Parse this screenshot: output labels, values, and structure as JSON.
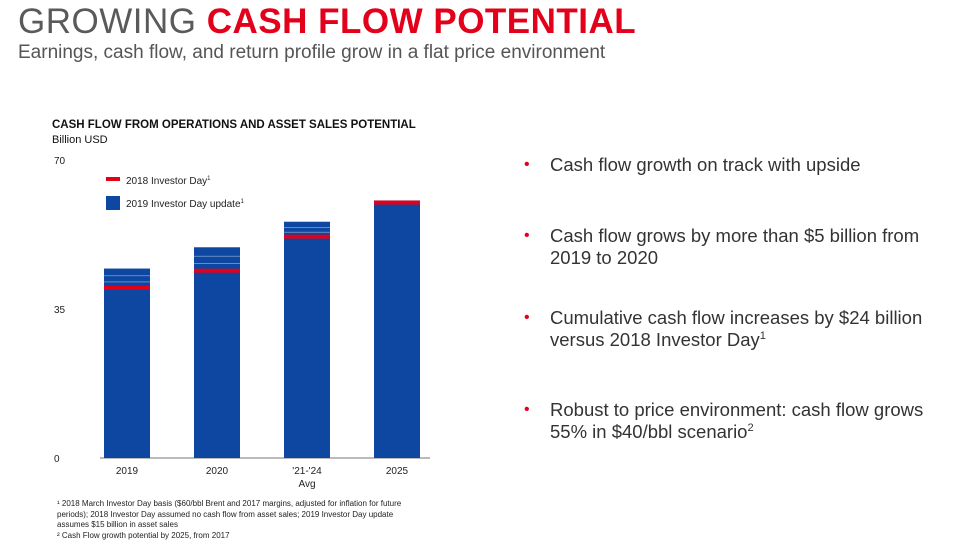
{
  "header": {
    "title_plain": "GROWING ",
    "title_accent": "CASH FLOW POTENTIAL",
    "subtitle": "Earnings, cash flow, and return profile grow in a flat price environment"
  },
  "chart_data": {
    "type": "bar",
    "title": "CASH FLOW FROM OPERATIONS AND ASSET SALES POTENTIAL",
    "unit_label": "Billion USD",
    "categories": [
      "2019",
      "2020",
      "'21-'24",
      "2025"
    ],
    "category_sublabels": [
      "",
      "",
      "Avg",
      ""
    ],
    "ylim": [
      0,
      70
    ],
    "yticks": [
      0,
      35,
      70
    ],
    "series": [
      {
        "name": "2018 Investor Day",
        "sup": "1",
        "values": [
          40,
          44,
          52,
          60
        ]
      },
      {
        "name": "2019 Investor Day update",
        "sup": "1",
        "values": [
          44.5,
          49.5,
          55.5,
          60.5
        ]
      }
    ],
    "colors": {
      "investor_day_2018": "#e3001b",
      "investor_day_2019": "#0d47a1"
    },
    "legend_position": "top-left"
  },
  "footnotes": [
    "¹ 2018 March Investor Day basis ($60/bbl Brent and 2017 margins, adjusted for inflation for future periods); 2018 Investor Day assumed no cash flow from asset sales; 2019 Investor Day update assumes $15 billion in asset sales",
    "² Cash Flow growth potential by 2025, from 2017"
  ],
  "bullets": [
    {
      "text": "Cash flow growth on track with upside",
      "sup": ""
    },
    {
      "text": "Cash flow grows by more than $5 billion from 2019 to 2020",
      "sup": ""
    },
    {
      "text": "Cumulative cash flow increases by $24 billion versus 2018 Investor Day",
      "sup": "1"
    },
    {
      "text": "Robust to price environment: cash flow grows 55% in $40/bbl scenario",
      "sup": "2"
    }
  ]
}
